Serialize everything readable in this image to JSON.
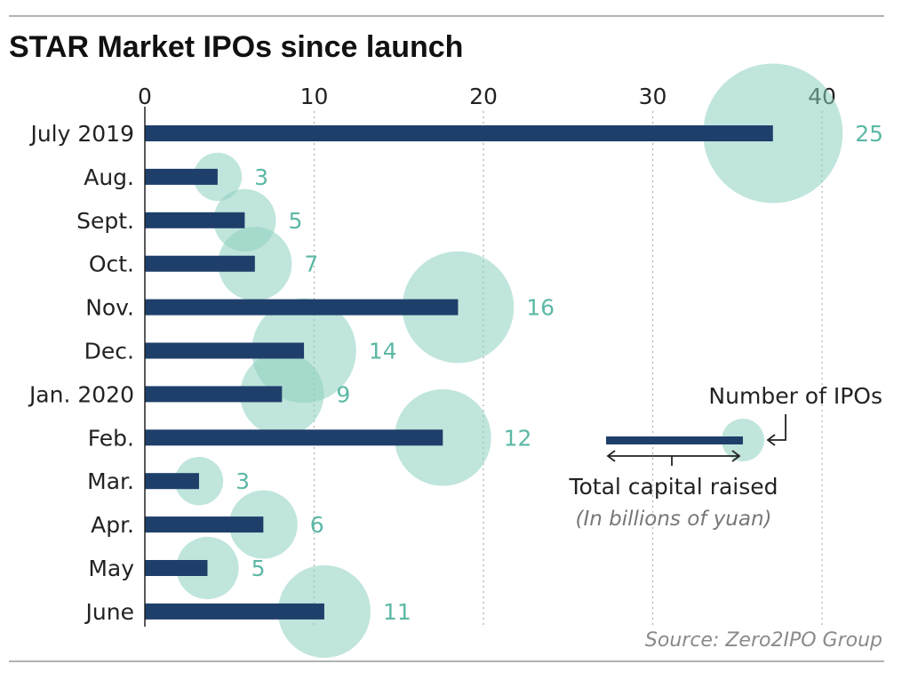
{
  "chart_data": {
    "type": "bar",
    "title": "STAR Market IPOs since launch",
    "xlim": [
      0,
      42
    ],
    "xticks": [
      0,
      10,
      20,
      30,
      40
    ],
    "categories": [
      "July 2019",
      "Aug.",
      "Sept.",
      "Oct.",
      "Nov.",
      "Dec.",
      "Jan. 2020",
      "Feb.",
      "Mar.",
      "Apr.",
      "May",
      "June"
    ],
    "series": [
      {
        "name": "Total capital raised",
        "values": [
          37.1,
          4.3,
          5.9,
          6.5,
          18.5,
          9.4,
          8.1,
          17.6,
          3.2,
          7.0,
          3.7,
          10.6
        ]
      },
      {
        "name": "Number of IPOs",
        "values": [
          25,
          3,
          5,
          7,
          16,
          14,
          9,
          12,
          3,
          6,
          5,
          11
        ]
      }
    ],
    "legend": {
      "bubble_label": "Number of IPOs",
      "bar_label": "Total capital raised",
      "unit_label": "(In billions of yuan)"
    },
    "source": "Source: Zero2IPO Group",
    "colors": {
      "bar": "#1f3f6b",
      "bubble": "#8ccfbf",
      "count_text": "#5cb8a6",
      "grid": "#b5b5b5",
      "rule": "#999999"
    }
  }
}
